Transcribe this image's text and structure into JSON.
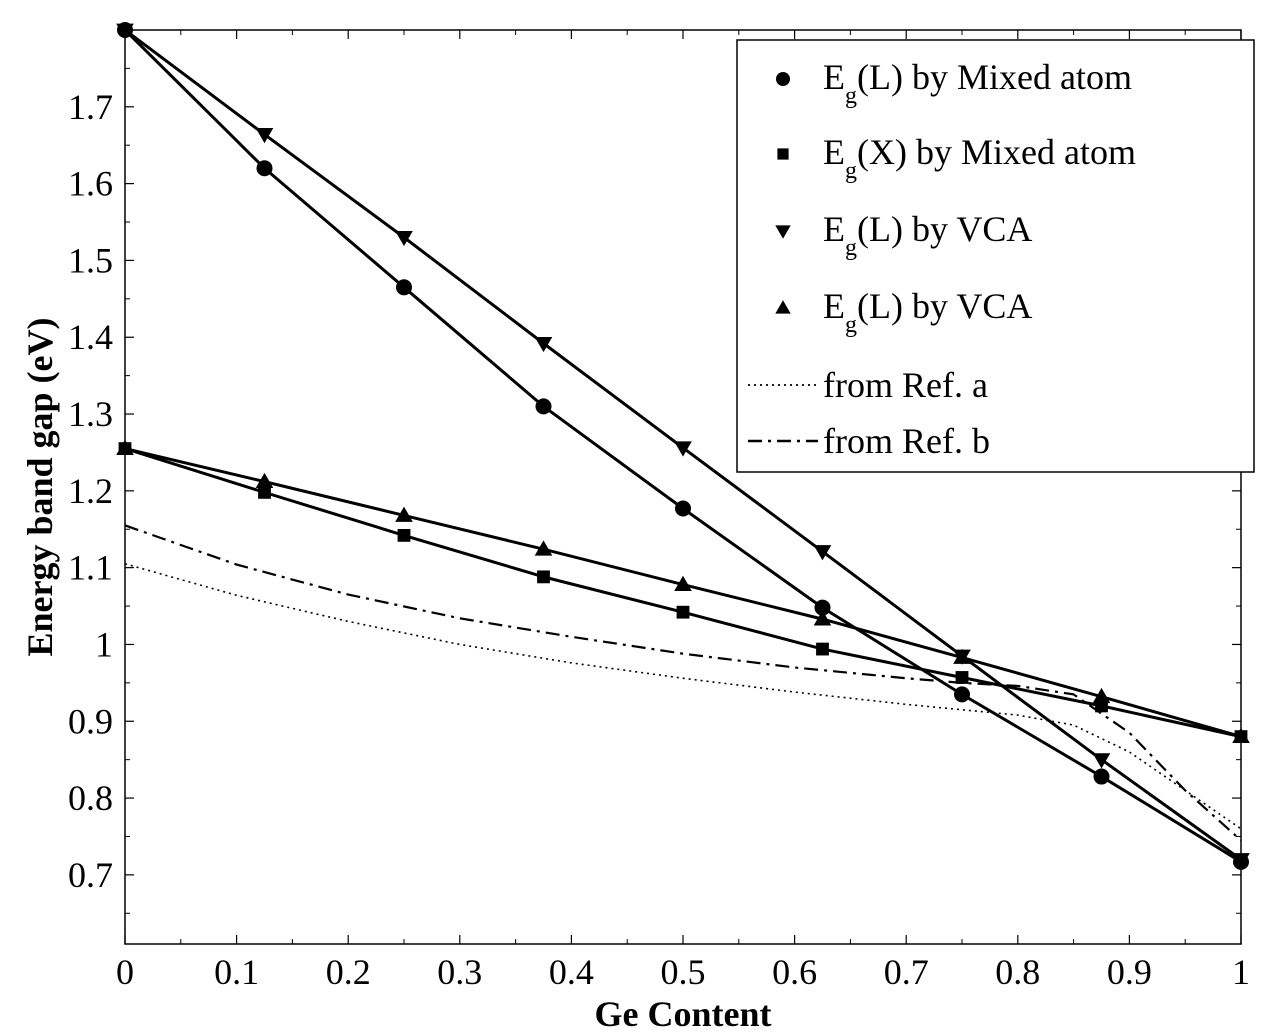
{
  "chart_data": {
    "type": "line",
    "xlabel": "Ge Content",
    "ylabel": "Energy band gap (eV)",
    "xlim": [
      0,
      1
    ],
    "ylim": [
      0.61,
      1.8
    ],
    "xticks": [
      0,
      0.1,
      0.2,
      0.3,
      0.4,
      0.5,
      0.6,
      0.7,
      0.8,
      0.9,
      1
    ],
    "xtick_labels": [
      "0",
      "0.1",
      "0.2",
      "0.3",
      "0.4",
      "0.5",
      "0.6",
      "0.7",
      "0.8",
      "0.9",
      "1"
    ],
    "yticks": [
      0.7,
      0.8,
      0.9,
      1.0,
      1.1,
      1.2,
      1.3,
      1.4,
      1.5,
      1.6,
      1.7
    ],
    "ytick_labels": [
      "0.7",
      "0.8",
      "0.9",
      "1",
      "1.1",
      "1.2",
      "1.3",
      "1.4",
      "1.5",
      "1.6",
      "1.7"
    ],
    "grid": false,
    "legend_position": "top-right",
    "series": [
      {
        "name": "Eg(L) by Mixed atom",
        "legend_main": "E",
        "legend_sub": "g",
        "legend_rest": "(L) by Mixed atom",
        "marker": "circle",
        "line": "solid",
        "x": [
          0,
          0.125,
          0.25,
          0.375,
          0.5,
          0.625,
          0.75,
          0.875,
          1
        ],
        "y": [
          1.8,
          1.62,
          1.465,
          1.31,
          1.177,
          1.048,
          0.935,
          0.828,
          0.717
        ]
      },
      {
        "name": "Eg(X) by Mixed atom",
        "legend_main": "E",
        "legend_sub": "g",
        "legend_rest": "(X) by Mixed atom",
        "marker": "square",
        "line": "solid",
        "x": [
          0,
          0.125,
          0.25,
          0.375,
          0.5,
          0.625,
          0.75,
          0.875,
          1
        ],
        "y": [
          1.255,
          1.198,
          1.142,
          1.088,
          1.042,
          0.994,
          0.957,
          0.92,
          0.88
        ]
      },
      {
        "name": "Eg(L) by VCA",
        "legend_main": "E",
        "legend_sub": "g",
        "legend_rest": "(L) by VCA",
        "marker": "triangle-down",
        "line": "solid",
        "x": [
          0,
          0.125,
          0.25,
          0.375,
          0.5,
          0.625,
          0.75,
          0.875,
          1
        ],
        "y": [
          1.8,
          1.664,
          1.53,
          1.392,
          1.256,
          1.121,
          0.985,
          0.85,
          0.72
        ]
      },
      {
        "name": "Eg(L) by VCA",
        "legend_main": "E",
        "legend_sub": "g",
        "legend_rest": "(L) by VCA",
        "marker": "triangle-up",
        "line": "solid",
        "x": [
          0,
          0.125,
          0.25,
          0.375,
          0.5,
          0.625,
          0.75,
          0.875,
          1
        ],
        "y": [
          1.255,
          1.212,
          1.168,
          1.124,
          1.078,
          1.033,
          0.983,
          0.932,
          0.88
        ]
      },
      {
        "name": "from Ref. a",
        "marker": "none",
        "line": "dotted",
        "x": [
          0,
          0.1,
          0.2,
          0.3,
          0.4,
          0.5,
          0.6,
          0.7,
          0.75,
          0.8,
          0.85,
          0.9,
          0.95,
          1
        ],
        "y": [
          1.105,
          1.064,
          1.03,
          1.0,
          0.976,
          0.956,
          0.938,
          0.922,
          0.915,
          0.908,
          0.895,
          0.86,
          0.81,
          0.76
        ]
      },
      {
        "name": "from Ref. b",
        "marker": "none",
        "line": "dashdot",
        "x": [
          0,
          0.1,
          0.2,
          0.3,
          0.4,
          0.5,
          0.6,
          0.7,
          0.75,
          0.8,
          0.85,
          0.9,
          0.95,
          1
        ],
        "y": [
          1.155,
          1.104,
          1.065,
          1.034,
          1.01,
          0.988,
          0.97,
          0.956,
          0.95,
          0.946,
          0.935,
          0.885,
          0.81,
          0.745
        ]
      }
    ]
  }
}
